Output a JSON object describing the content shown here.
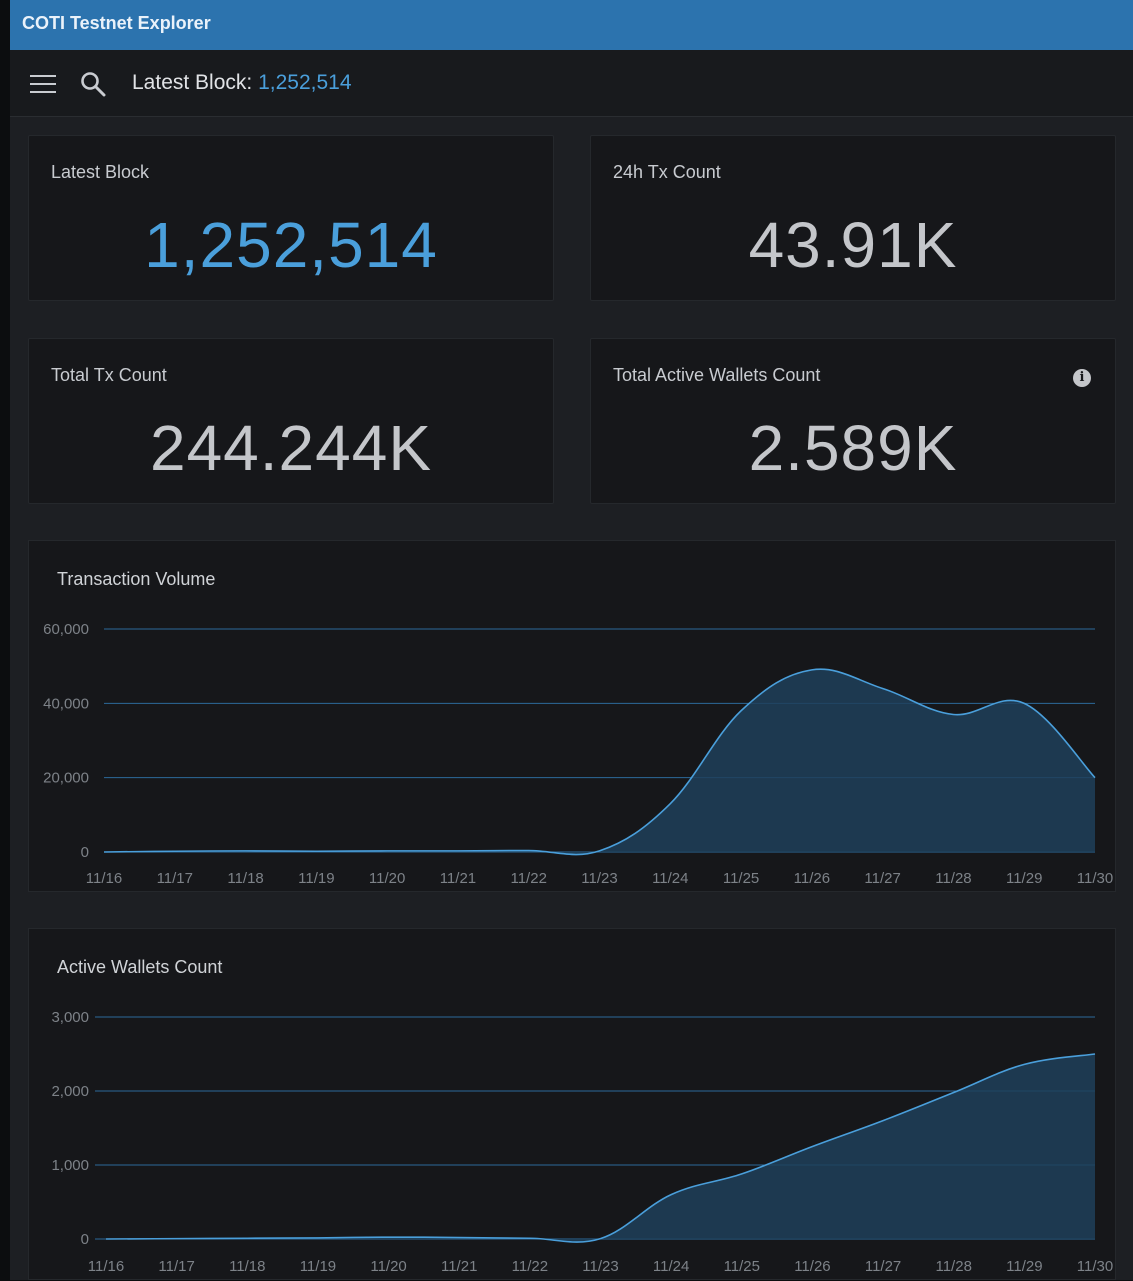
{
  "titlebar": {
    "title": "COTI Testnet Explorer"
  },
  "toolbar": {
    "menu_icon": "hamburger-menu-icon",
    "search_icon": "search-icon",
    "latest_block_label": "Latest Block:",
    "latest_block_value": "1,252,514"
  },
  "stats": {
    "latest_block": {
      "label": "Latest Block",
      "value": "1,252,514"
    },
    "tx_24h": {
      "label": "24h Tx Count",
      "value": "43.91K"
    },
    "total_tx": {
      "label": "Total Tx Count",
      "value": "244.244K"
    },
    "active_wallets": {
      "label": "Total Active Wallets Count",
      "value": "2.589K",
      "info_icon": "info-icon"
    }
  },
  "colors": {
    "accent": "#4a9fdb",
    "titlebar": "#2c73ae",
    "area_fill": "#1f3f5b"
  },
  "chart_data": [
    {
      "type": "area",
      "title": "Transaction Volume",
      "categories": [
        "11/16",
        "11/17",
        "11/18",
        "11/19",
        "11/20",
        "11/21",
        "11/22",
        "11/23",
        "11/24",
        "11/25",
        "11/26",
        "11/27",
        "11/28",
        "11/29",
        "11/30"
      ],
      "values": [
        0,
        200,
        300,
        200,
        300,
        300,
        400,
        300,
        13000,
        38000,
        49000,
        44000,
        37000,
        40000,
        20000
      ],
      "ylim": [
        0,
        60000
      ],
      "yticks": [
        0,
        20000,
        40000,
        60000
      ],
      "ytick_labels": [
        "0",
        "20,000",
        "40,000",
        "60,000"
      ],
      "grid": true
    },
    {
      "type": "area",
      "title": "Active Wallets Count",
      "categories": [
        "11/16",
        "11/17",
        "11/18",
        "11/19",
        "11/20",
        "11/21",
        "11/22",
        "11/23",
        "11/24",
        "11/25",
        "11/26",
        "11/27",
        "11/28",
        "11/29",
        "11/30"
      ],
      "values": [
        0,
        5,
        10,
        15,
        25,
        20,
        10,
        5,
        600,
        880,
        1250,
        1600,
        1980,
        2360,
        2500
      ],
      "ylim": [
        0,
        3000
      ],
      "yticks": [
        0,
        1000,
        2000,
        3000
      ],
      "ytick_labels": [
        "0",
        "1,000",
        "2,000",
        "3,000"
      ],
      "grid": true
    }
  ]
}
